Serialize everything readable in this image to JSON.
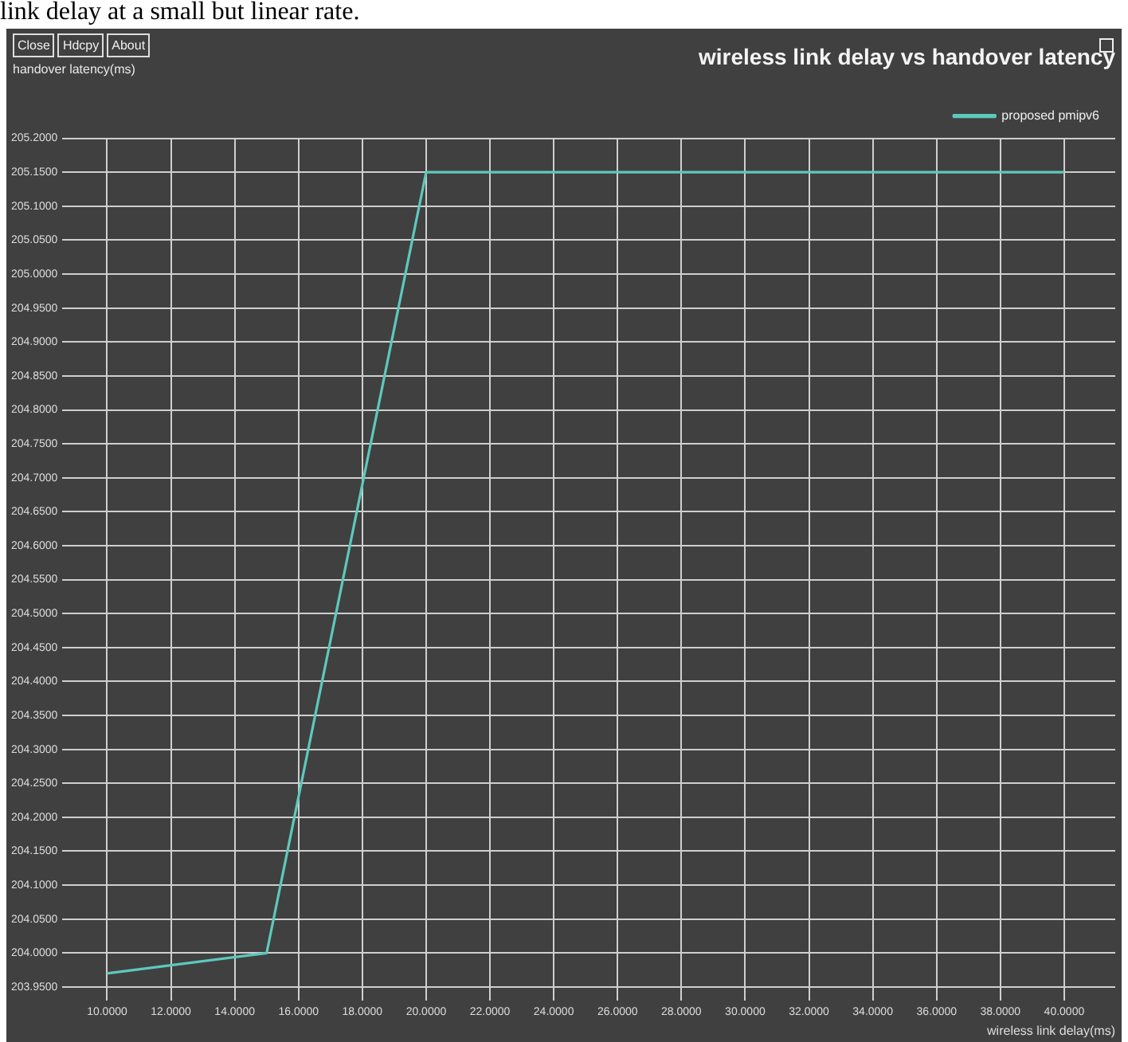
{
  "chart_data": {
    "type": "line",
    "title": "wireless link delay vs handover latency",
    "xlabel": "wireless link delay(ms)",
    "ylabel": "handover latency(ms)",
    "annotations": [
      "link delay at a small but linear rate.",
      "Close",
      "Hdcpy",
      "About"
    ],
    "series": [
      {
        "name": "proposed pmipv6",
        "color": "#5ec8bd",
        "x": [
          10,
          15,
          20,
          40
        ],
        "values": [
          203.97,
          204.0,
          205.15,
          205.15
        ]
      }
    ],
    "xlim": [
      8.6,
      41.6
    ],
    "ylim": [
      203.93,
      205.2
    ],
    "xticks": [
      {
        "value": 10,
        "label": "10.0000"
      },
      {
        "value": 12,
        "label": "12.0000"
      },
      {
        "value": 14,
        "label": "14.0000"
      },
      {
        "value": 16,
        "label": "16.0000"
      },
      {
        "value": 18,
        "label": "18.0000"
      },
      {
        "value": 20,
        "label": "20.0000"
      },
      {
        "value": 22,
        "label": "22.0000"
      },
      {
        "value": 24,
        "label": "24.0000"
      },
      {
        "value": 26,
        "label": "26.0000"
      },
      {
        "value": 28,
        "label": "28.0000"
      },
      {
        "value": 30,
        "label": "30.0000"
      },
      {
        "value": 32,
        "label": "32.0000"
      },
      {
        "value": 34,
        "label": "34.0000"
      },
      {
        "value": 36,
        "label": "36.0000"
      },
      {
        "value": 38,
        "label": "38.0000"
      },
      {
        "value": 40,
        "label": "40.0000"
      }
    ],
    "yticks": [
      {
        "value": 203.95,
        "label": "203.9500"
      },
      {
        "value": 204.0,
        "label": "204.0000"
      },
      {
        "value": 204.05,
        "label": "204.0500"
      },
      {
        "value": 204.1,
        "label": "204.1000"
      },
      {
        "value": 204.15,
        "label": "204.1500"
      },
      {
        "value": 204.2,
        "label": "204.2000"
      },
      {
        "value": 204.25,
        "label": "204.2500"
      },
      {
        "value": 204.3,
        "label": "204.3000"
      },
      {
        "value": 204.35,
        "label": "204.3500"
      },
      {
        "value": 204.4,
        "label": "204.4000"
      },
      {
        "value": 204.45,
        "label": "204.4500"
      },
      {
        "value": 204.5,
        "label": "204.5000"
      },
      {
        "value": 204.55,
        "label": "204.5500"
      },
      {
        "value": 204.6,
        "label": "204.6000"
      },
      {
        "value": 204.65,
        "label": "204.6500"
      },
      {
        "value": 204.7,
        "label": "204.7000"
      },
      {
        "value": 204.75,
        "label": "204.7500"
      },
      {
        "value": 204.8,
        "label": "204.8000"
      },
      {
        "value": 204.85,
        "label": "204.8500"
      },
      {
        "value": 204.9,
        "label": "204.9000"
      },
      {
        "value": 204.95,
        "label": "204.9500"
      },
      {
        "value": 205.0,
        "label": "205.0000"
      },
      {
        "value": 205.05,
        "label": "205.0500"
      },
      {
        "value": 205.1,
        "label": "205.1000"
      },
      {
        "value": 205.15,
        "label": "205.1500"
      },
      {
        "value": 205.2,
        "label": "205.2000"
      }
    ],
    "grid": true,
    "legend": "top right",
    "marker": "none",
    "line_style": "solid"
  }
}
